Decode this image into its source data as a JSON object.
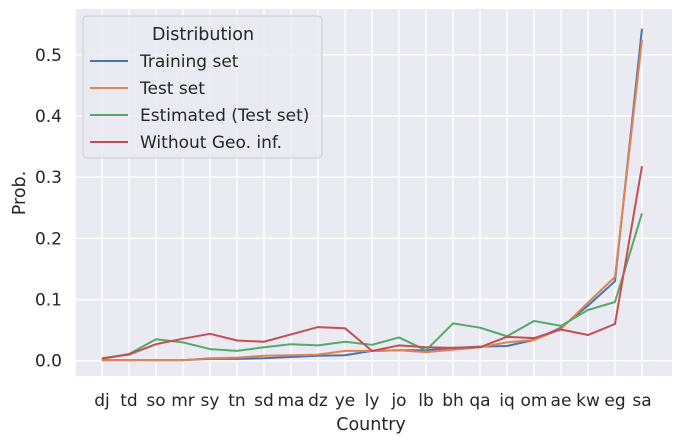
{
  "chart_data": {
    "type": "line",
    "xlabel": "Country",
    "ylabel": "Prob.",
    "ylim": [
      -0.025,
      0.575
    ],
    "yticks": [
      0.0,
      0.1,
      0.2,
      0.3,
      0.4,
      0.5
    ],
    "ytick_labels": [
      "0.0",
      "0.1",
      "0.2",
      "0.3",
      "0.4",
      "0.5"
    ],
    "grid": true,
    "legend_placement": "top-left",
    "legend_title": "Distribution",
    "categories": [
      "dj",
      "td",
      "so",
      "mr",
      "sy",
      "tn",
      "sd",
      "ma",
      "dz",
      "ye",
      "ly",
      "jo",
      "lb",
      "bh",
      "qa",
      "iq",
      "om",
      "ae",
      "kw",
      "eg",
      "sa"
    ],
    "series": [
      {
        "name": "Training set",
        "color": "#4c72b0",
        "values": [
          0.001,
          0.001,
          0.001,
          0.001,
          0.003,
          0.003,
          0.004,
          0.006,
          0.008,
          0.009,
          0.016,
          0.017,
          0.017,
          0.021,
          0.023,
          0.024,
          0.034,
          0.054,
          0.09,
          0.13,
          0.543
        ]
      },
      {
        "name": "Test set",
        "color": "#dd8452",
        "values": [
          0.001,
          0.001,
          0.001,
          0.001,
          0.004,
          0.005,
          0.008,
          0.009,
          0.01,
          0.016,
          0.016,
          0.017,
          0.014,
          0.018,
          0.022,
          0.03,
          0.034,
          0.052,
          0.095,
          0.137,
          0.525
        ]
      },
      {
        "name": "Estimated (Test set)",
        "color": "#55a868",
        "values": [
          0.003,
          0.011,
          0.035,
          0.03,
          0.019,
          0.016,
          0.022,
          0.027,
          0.025,
          0.031,
          0.026,
          0.038,
          0.017,
          0.061,
          0.054,
          0.04,
          0.065,
          0.057,
          0.083,
          0.096,
          0.241
        ]
      },
      {
        "name": "Without Geo. inf.",
        "color": "#c44e52",
        "values": [
          0.004,
          0.01,
          0.027,
          0.036,
          0.044,
          0.033,
          0.031,
          0.043,
          0.055,
          0.053,
          0.016,
          0.025,
          0.022,
          0.021,
          0.022,
          0.039,
          0.037,
          0.051,
          0.042,
          0.06,
          0.318
        ]
      }
    ]
  }
}
